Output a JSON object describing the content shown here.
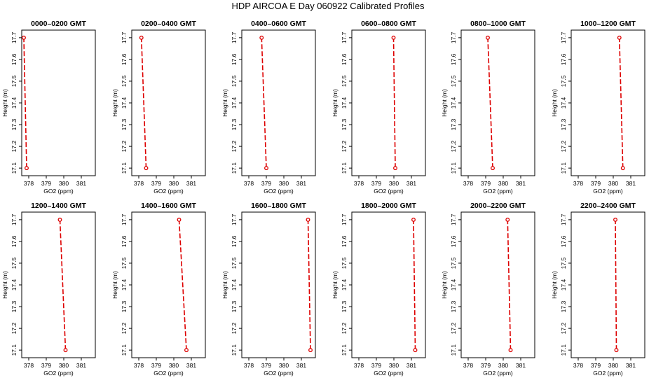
{
  "title": "HDP  AIRCOA E  Day 060922  Calibrated Profiles",
  "chart_data": [
    {
      "type": "line",
      "title": "0000–0200 GMT",
      "xlabel": "GO2 (ppm)",
      "ylabel": "Height (m)",
      "xlim": [
        377.6,
        381.8
      ],
      "ylim": [
        17.065,
        17.735
      ],
      "xticks": [
        378,
        379,
        380,
        381
      ],
      "yticks": [
        17.1,
        17.2,
        17.3,
        17.4,
        17.5,
        17.6,
        17.7
      ],
      "series": [
        {
          "x": [
            377.88,
            377.72
          ],
          "y": [
            17.1,
            17.7
          ],
          "color": "#dd0000",
          "marker": "circle",
          "linestyle": "dashed"
        }
      ]
    },
    {
      "type": "line",
      "title": "0200–0400 GMT",
      "xlabel": "GO2 (ppm)",
      "ylabel": "Height (m)",
      "xlim": [
        377.6,
        381.8
      ],
      "ylim": [
        17.065,
        17.735
      ],
      "xticks": [
        378,
        379,
        380,
        381
      ],
      "yticks": [
        17.1,
        17.2,
        17.3,
        17.4,
        17.5,
        17.6,
        17.7
      ],
      "series": [
        {
          "x": [
            378.42,
            378.15
          ],
          "y": [
            17.1,
            17.7
          ],
          "color": "#dd0000",
          "marker": "circle",
          "linestyle": "dashed"
        }
      ]
    },
    {
      "type": "line",
      "title": "0400–0600 GMT",
      "xlabel": "GO2 (ppm)",
      "ylabel": "Height (m)",
      "xlim": [
        377.6,
        381.8
      ],
      "ylim": [
        17.065,
        17.735
      ],
      "xticks": [
        378,
        379,
        380,
        381
      ],
      "yticks": [
        17.1,
        17.2,
        17.3,
        17.4,
        17.5,
        17.6,
        17.7
      ],
      "series": [
        {
          "x": [
            379.0,
            378.73
          ],
          "y": [
            17.1,
            17.7
          ],
          "color": "#dd0000",
          "marker": "circle",
          "linestyle": "dashed"
        }
      ]
    },
    {
      "type": "line",
      "title": "0600–0800 GMT",
      "xlabel": "GO2 (ppm)",
      "ylabel": "Height (m)",
      "xlim": [
        377.6,
        381.8
      ],
      "ylim": [
        17.065,
        17.735
      ],
      "xticks": [
        378,
        379,
        380,
        381
      ],
      "yticks": [
        17.1,
        17.2,
        17.3,
        17.4,
        17.5,
        17.6,
        17.7
      ],
      "series": [
        {
          "x": [
            380.08,
            379.98
          ],
          "y": [
            17.1,
            17.7
          ],
          "color": "#dd0000",
          "marker": "circle",
          "linestyle": "dashed"
        }
      ]
    },
    {
      "type": "line",
      "title": "0800–1000 GMT",
      "xlabel": "GO2 (ppm)",
      "ylabel": "Height (m)",
      "xlim": [
        377.6,
        381.8
      ],
      "ylim": [
        17.065,
        17.735
      ],
      "xticks": [
        378,
        379,
        380,
        381
      ],
      "yticks": [
        17.1,
        17.2,
        17.3,
        17.4,
        17.5,
        17.6,
        17.7
      ],
      "series": [
        {
          "x": [
            379.4,
            379.12
          ],
          "y": [
            17.1,
            17.7
          ],
          "color": "#dd0000",
          "marker": "circle",
          "linestyle": "dashed"
        }
      ]
    },
    {
      "type": "line",
      "title": "1000–1200 GMT",
      "xlabel": "GO2 (ppm)",
      "ylabel": "Height (m)",
      "xlim": [
        377.6,
        381.8
      ],
      "ylim": [
        17.065,
        17.735
      ],
      "xticks": [
        378,
        379,
        380,
        381
      ],
      "yticks": [
        17.1,
        17.2,
        17.3,
        17.4,
        17.5,
        17.6,
        17.7
      ],
      "series": [
        {
          "x": [
            380.55,
            380.35
          ],
          "y": [
            17.1,
            17.7
          ],
          "color": "#dd0000",
          "marker": "circle",
          "linestyle": "dashed"
        }
      ]
    },
    {
      "type": "line",
      "title": "1200–1400 GMT",
      "xlabel": "GO2 (ppm)",
      "ylabel": "Height (m)",
      "xlim": [
        377.6,
        381.8
      ],
      "ylim": [
        17.065,
        17.735
      ],
      "xticks": [
        378,
        379,
        380,
        381
      ],
      "yticks": [
        17.1,
        17.2,
        17.3,
        17.4,
        17.5,
        17.6,
        17.7
      ],
      "series": [
        {
          "x": [
            380.1,
            379.78
          ],
          "y": [
            17.1,
            17.7
          ],
          "color": "#dd0000",
          "marker": "circle",
          "linestyle": "dashed"
        }
      ]
    },
    {
      "type": "line",
      "title": "1400–1600 GMT",
      "xlabel": "GO2 (ppm)",
      "ylabel": "Height (m)",
      "xlim": [
        377.6,
        381.8
      ],
      "ylim": [
        17.065,
        17.735
      ],
      "xticks": [
        378,
        379,
        380,
        381
      ],
      "yticks": [
        17.1,
        17.2,
        17.3,
        17.4,
        17.5,
        17.6,
        17.7
      ],
      "series": [
        {
          "x": [
            380.72,
            380.3
          ],
          "y": [
            17.1,
            17.7
          ],
          "color": "#dd0000",
          "marker": "circle",
          "linestyle": "dashed"
        }
      ]
    },
    {
      "type": "line",
      "title": "1600–1800 GMT",
      "xlabel": "GO2 (ppm)",
      "ylabel": "Height (m)",
      "xlim": [
        377.6,
        381.8
      ],
      "ylim": [
        17.065,
        17.735
      ],
      "xticks": [
        378,
        379,
        380,
        381
      ],
      "yticks": [
        17.1,
        17.2,
        17.3,
        17.4,
        17.5,
        17.6,
        17.7
      ],
      "series": [
        {
          "x": [
            381.52,
            381.38
          ],
          "y": [
            17.1,
            17.7
          ],
          "color": "#dd0000",
          "marker": "circle",
          "linestyle": "dashed"
        }
      ]
    },
    {
      "type": "line",
      "title": "1800–2000 GMT",
      "xlabel": "GO2 (ppm)",
      "ylabel": "Height (m)",
      "xlim": [
        377.6,
        381.8
      ],
      "ylim": [
        17.065,
        17.735
      ],
      "xticks": [
        378,
        379,
        380,
        381
      ],
      "yticks": [
        17.1,
        17.2,
        17.3,
        17.4,
        17.5,
        17.6,
        17.7
      ],
      "series": [
        {
          "x": [
            381.22,
            381.12
          ],
          "y": [
            17.1,
            17.7
          ],
          "color": "#dd0000",
          "marker": "circle",
          "linestyle": "dashed"
        }
      ]
    },
    {
      "type": "line",
      "title": "2000–2200 GMT",
      "xlabel": "GO2 (ppm)",
      "ylabel": "Height (m)",
      "xlim": [
        377.6,
        381.8
      ],
      "ylim": [
        17.065,
        17.735
      ],
      "xticks": [
        378,
        379,
        380,
        381
      ],
      "yticks": [
        17.1,
        17.2,
        17.3,
        17.4,
        17.5,
        17.6,
        17.7
      ],
      "series": [
        {
          "x": [
            380.42,
            380.25
          ],
          "y": [
            17.1,
            17.7
          ],
          "color": "#dd0000",
          "marker": "circle",
          "linestyle": "dashed"
        }
      ]
    },
    {
      "type": "line",
      "title": "2200–2400 GMT",
      "xlabel": "GO2 (ppm)",
      "ylabel": "Height (m)",
      "xlim": [
        377.6,
        381.8
      ],
      "ylim": [
        17.065,
        17.735
      ],
      "xticks": [
        378,
        379,
        380,
        381
      ],
      "yticks": [
        17.1,
        17.2,
        17.3,
        17.4,
        17.5,
        17.6,
        17.7
      ],
      "series": [
        {
          "x": [
            380.18,
            380.12
          ],
          "y": [
            17.1,
            17.7
          ],
          "color": "#dd0000",
          "marker": "circle",
          "linestyle": "dashed"
        }
      ]
    }
  ]
}
